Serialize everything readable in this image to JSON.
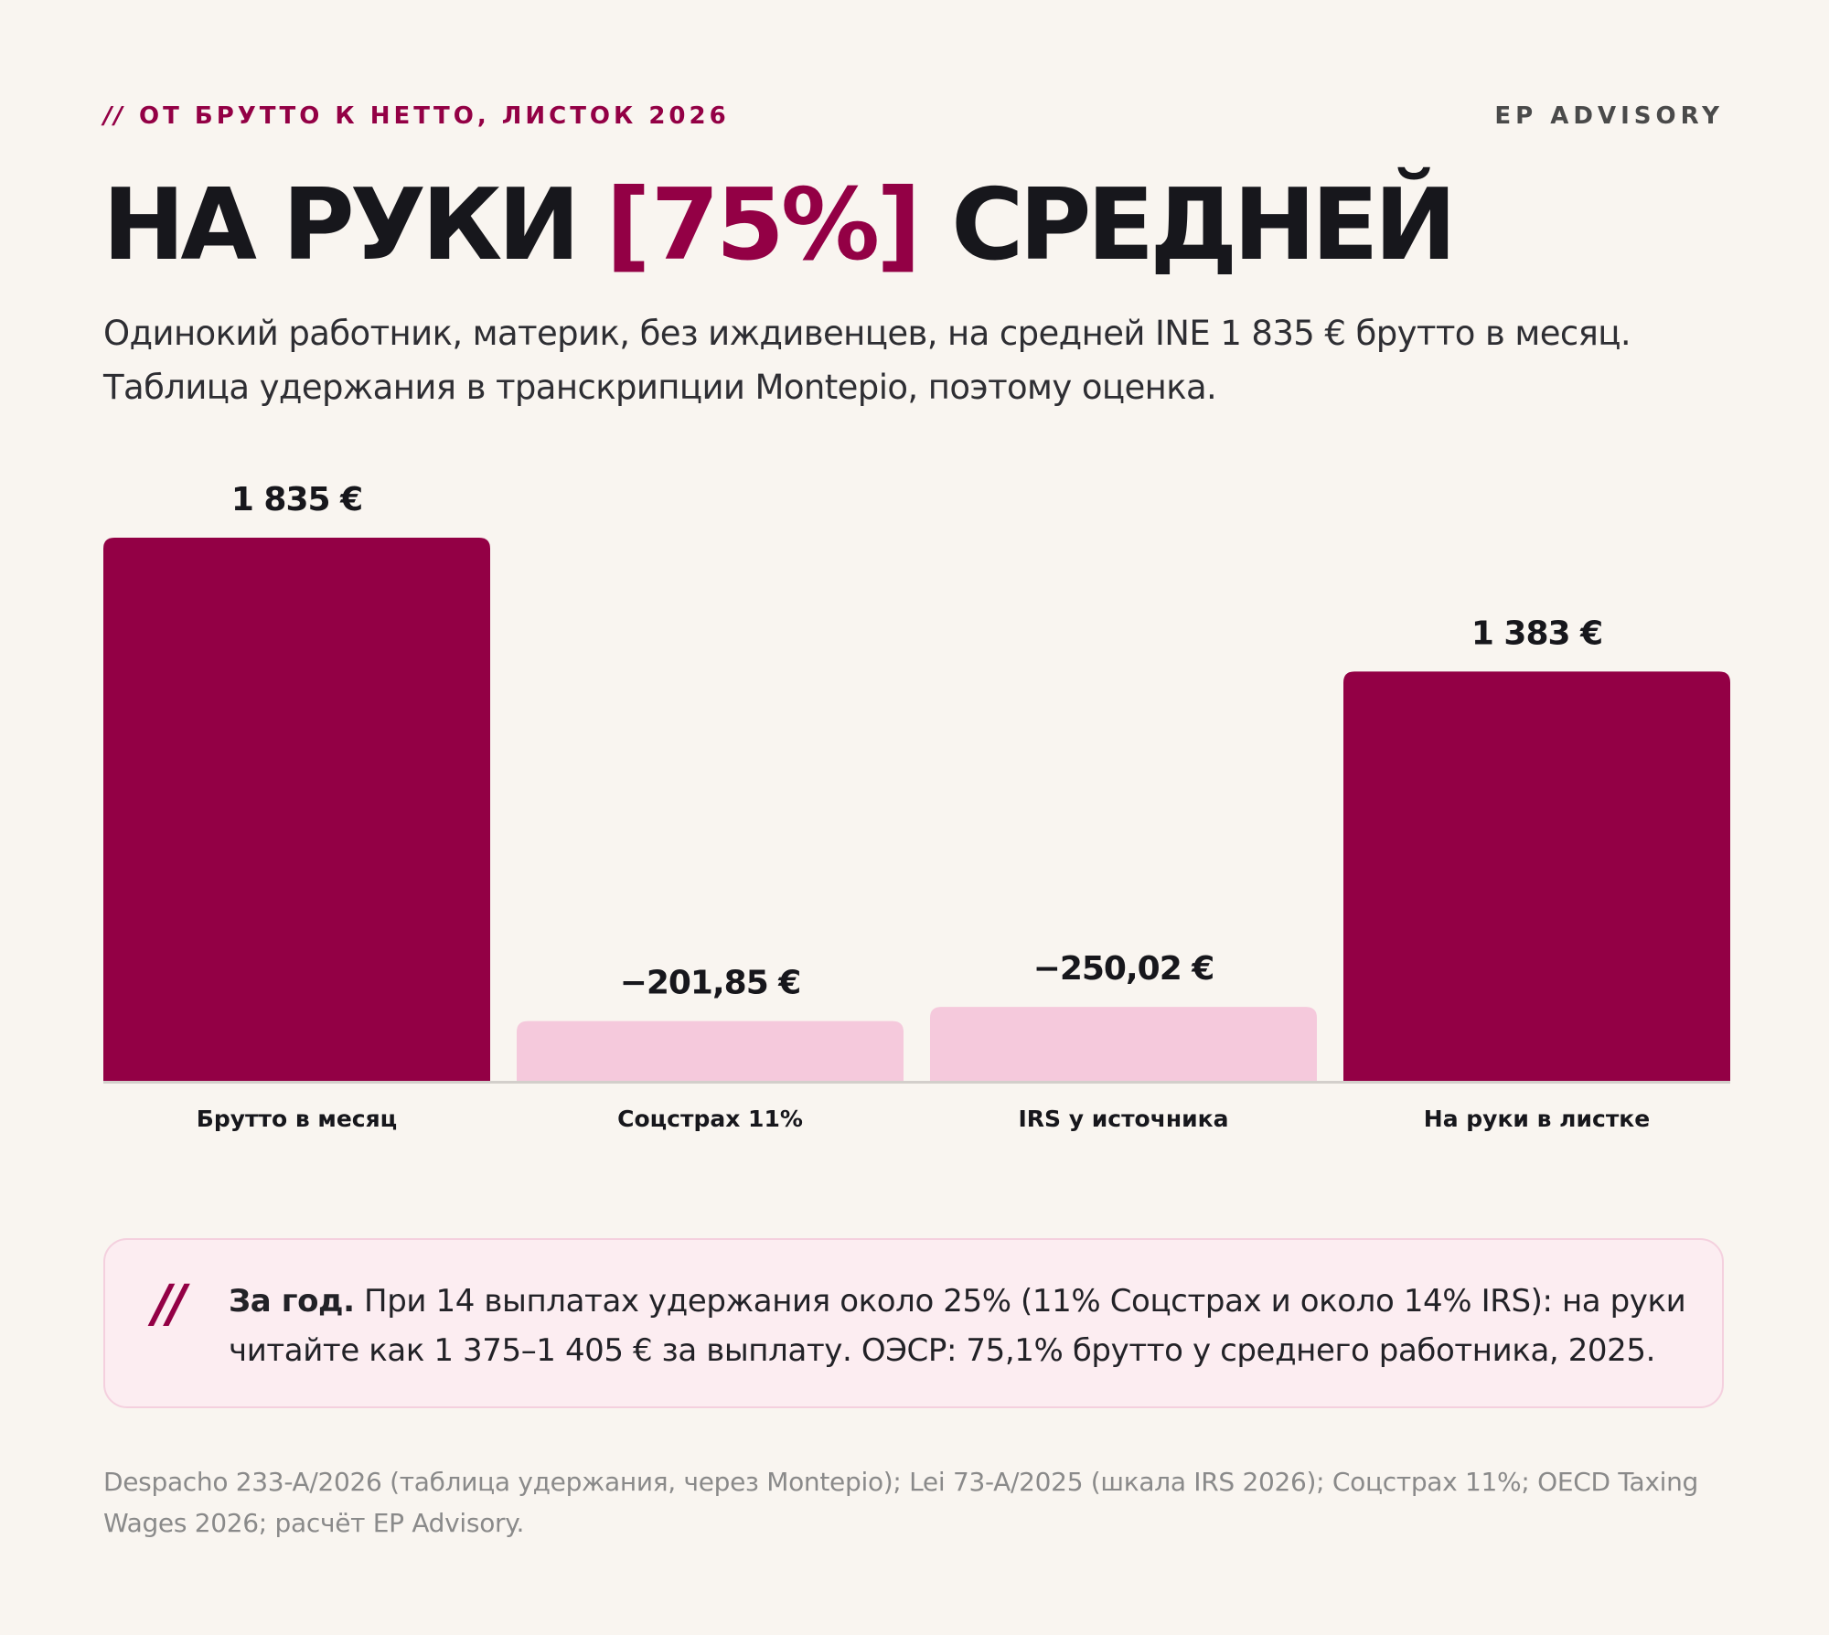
{
  "header": {
    "kicker_slashes": "//",
    "kicker": "ОТ БРУТТО К НЕТТО, ЛИСТОК 2026",
    "brand": "EP ADVISORY",
    "title_left": "НА РУКИ",
    "title_bracket_open": "[",
    "title_highlight": "75%",
    "title_bracket_close": "]",
    "title_right": "СРЕДНЕЙ",
    "subtitle": "Одинокий работник, материк, без иждивенцев, на средней INE 1 835 € брутто в месяц. Таблица удержания в транскрипции Montepio, поэтому оценка."
  },
  "chart_data": {
    "type": "bar",
    "categories": [
      "Брутто в месяц",
      "Соцстрах 11%",
      "IRS у источника",
      "На руки в листке"
    ],
    "values": [
      1835,
      -201.85,
      -250.02,
      1383
    ],
    "value_labels": [
      "1 835 €",
      "−201,85 €",
      "−250,02 €",
      "1 383 €"
    ],
    "bar_kinds": [
      "total",
      "deduction",
      "deduction",
      "total"
    ],
    "colors": {
      "total": "#930045",
      "deduction": "#f5c9dc",
      "label": "#17171c",
      "axis": "#d3cfcb"
    },
    "ylim": [
      0,
      1835
    ],
    "grid": false,
    "title": "",
    "xlabel": "",
    "ylabel": ""
  },
  "callout": {
    "mark": "//",
    "lead": "За год.",
    "text": " При 14 выплатах удержания около 25% (11% Соцстрах и около 14% IRS): на руки читайте как 1 375–1 405 € за выплату. ОЭСР: 75,1% брутто у среднего работника, 2025."
  },
  "footnote": "Despacho 233-A/2026 (таблица удержания, через Montepio); Lei 73-A/2025 (шкала IRS 2026); Соцстрах 11%; OECD Taxing Wages 2026; расчёт EP Advisory."
}
